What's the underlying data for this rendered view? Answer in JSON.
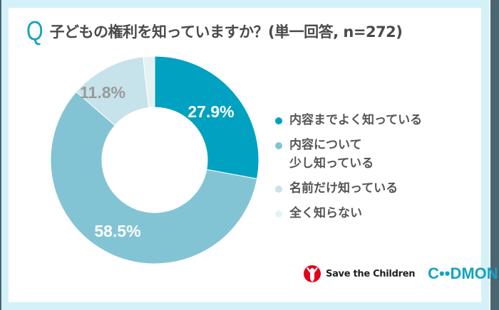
{
  "title": {
    "q_mark": "Q",
    "text": "子どもの権利を知っていますか？(単一回答, n=272)"
  },
  "colors": {
    "frame_bg": "#d4f1f9",
    "accent": "#12a3c2",
    "slice1": "#01a1c1",
    "slice2": "#83c4d4",
    "slice3": "#c6e2ea",
    "slice4": "#e4f2f6"
  },
  "chart_data": {
    "type": "pie",
    "variant": "donut",
    "title": "子どもの権利を知っていますか？(単一回答, n=272)",
    "n": 272,
    "categories": [
      "内容までよく知っている",
      "内容について少し知っている",
      "名前だけ知っている",
      "全く知らない"
    ],
    "values": [
      27.9,
      58.5,
      11.8,
      1.8
    ],
    "unit": "%",
    "data_labels": [
      "27.9%",
      "58.5%",
      "11.8%",
      ""
    ],
    "legend_position": "right",
    "start_angle": "12 o'clock, clockwise"
  },
  "labels": {
    "slice1": "27.9%",
    "slice2": "58.5%",
    "slice3": "11.8%"
  },
  "legend": [
    {
      "label": "内容までよく知っている",
      "color": "#01a1c1"
    },
    {
      "label": "内容について\n少し知っている",
      "color": "#83c4d4"
    },
    {
      "label": "名前だけ知っている",
      "color": "#c6e2ea"
    },
    {
      "label": "全く知らない",
      "color": "#e4f2f6"
    }
  ],
  "logos": {
    "save_the_children": "Save the Children",
    "codmon": "C••DMON"
  }
}
